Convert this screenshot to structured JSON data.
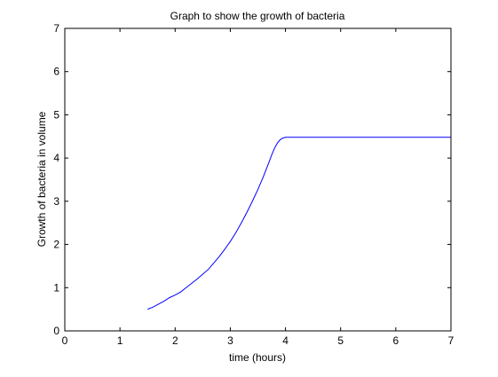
{
  "chart_data": {
    "type": "line",
    "title": "Graph to show the growth of bacteria",
    "xlabel": "time (hours)",
    "ylabel": "Growth of bacteria in volume",
    "xlim": [
      0,
      7
    ],
    "ylim": [
      0,
      7
    ],
    "xticks": [
      "0",
      "1",
      "2",
      "3",
      "4",
      "5",
      "6",
      "7"
    ],
    "yticks": [
      "0",
      "1",
      "2",
      "3",
      "4",
      "5",
      "6",
      "7"
    ],
    "grid": false,
    "series": [
      {
        "color": "#0000ff",
        "x": [
          1.5,
          1.6,
          1.7,
          1.8,
          1.9,
          2.0,
          2.1,
          2.2,
          2.3,
          2.4,
          2.5,
          2.6,
          2.7,
          2.8,
          2.9,
          3.0,
          3.1,
          3.2,
          3.3,
          3.4,
          3.5,
          3.6,
          3.7,
          3.75,
          3.8,
          3.85,
          3.9,
          3.95,
          4.0,
          4.5,
          5.0,
          5.5,
          6.0,
          6.5,
          7.0
        ],
        "y": [
          0.5,
          0.55,
          0.62,
          0.69,
          0.77,
          0.83,
          0.9,
          1.0,
          1.1,
          1.2,
          1.31,
          1.42,
          1.57,
          1.72,
          1.89,
          2.07,
          2.27,
          2.5,
          2.74,
          3.0,
          3.27,
          3.57,
          3.9,
          4.07,
          4.22,
          4.34,
          4.42,
          4.46,
          4.48,
          4.48,
          4.48,
          4.48,
          4.48,
          4.48,
          4.48
        ]
      }
    ]
  }
}
